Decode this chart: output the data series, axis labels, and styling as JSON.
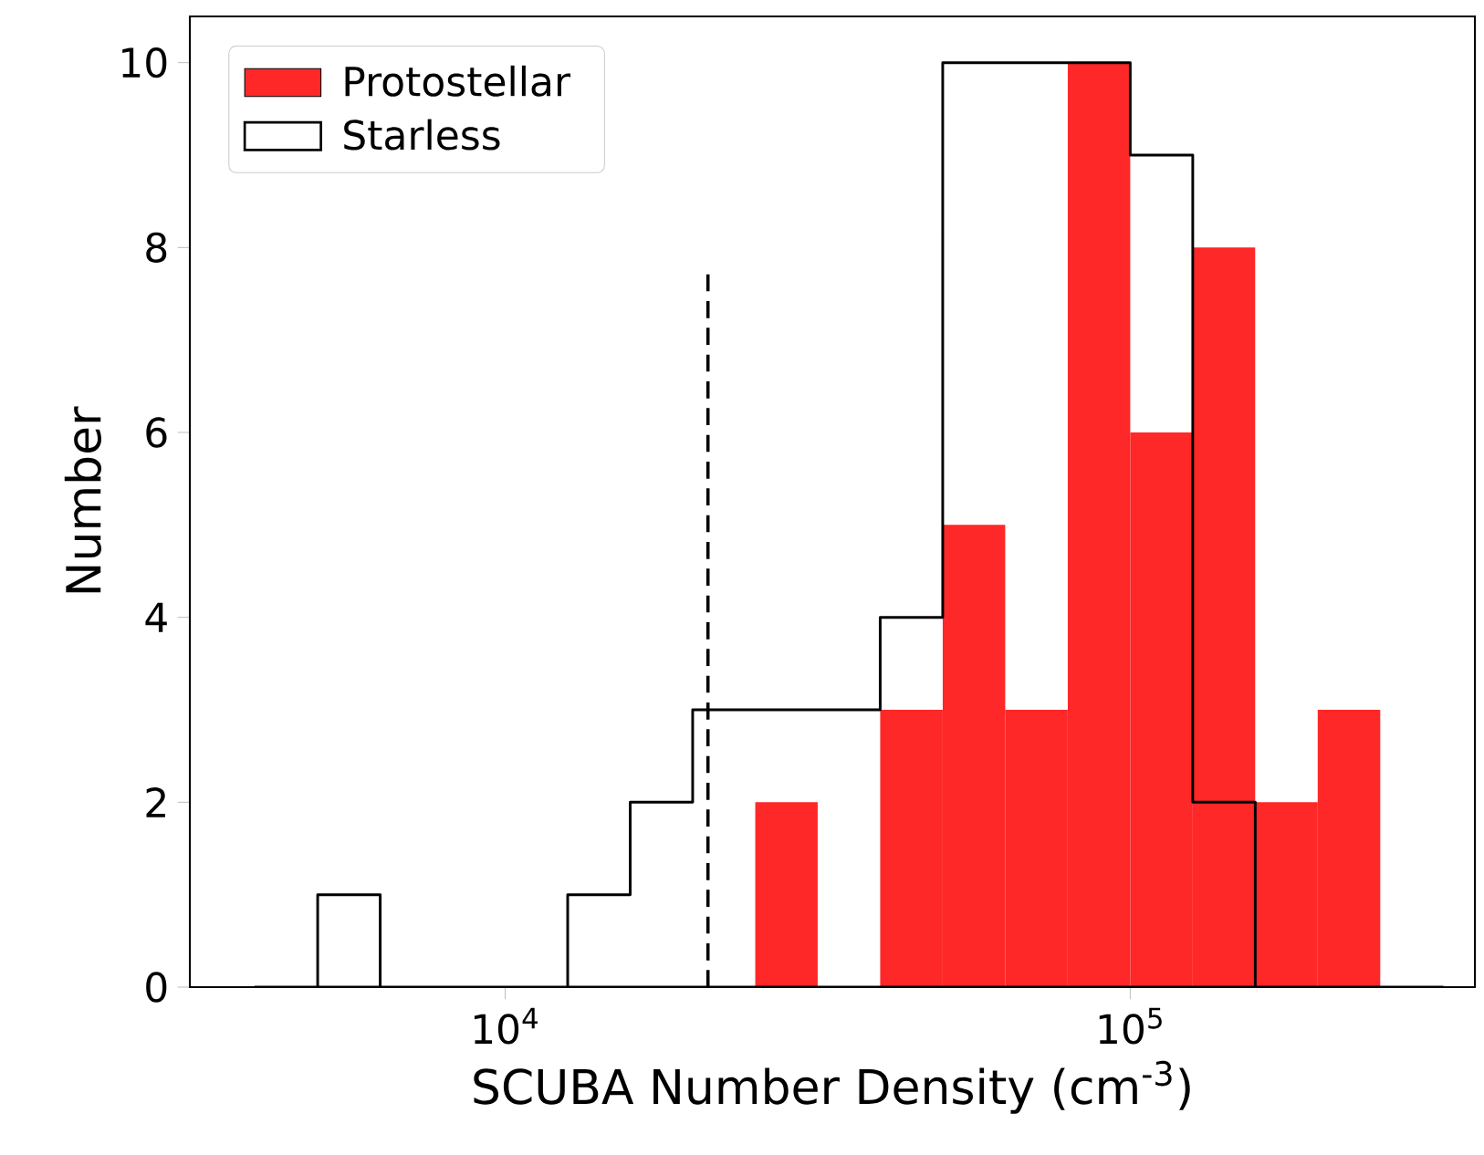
{
  "chart_data": {
    "type": "histogram",
    "xlabel": "SCUBA Number Density (cm$^{-3}$)",
    "ylabel": "Number",
    "log": "x",
    "legend": "top left",
    "xlim": [
      3130,
      356000
    ],
    "xticks": [
      {
        "value": 10000,
        "label": "10$^{4}$"
      },
      {
        "value": 100000,
        "label": "10$^{5}$"
      }
    ],
    "ylim": [
      0,
      10.5
    ],
    "yticks": [
      0,
      2,
      4,
      6,
      8,
      10
    ],
    "bins": [
      3981,
      5012,
      6310,
      7943,
      10000,
      12589,
      15849,
      19953,
      25119,
      31623,
      39811,
      50119,
      63096,
      79433,
      100000,
      125893,
      158489,
      199526,
      251189,
      316228
    ],
    "series": [
      {
        "name": "Protostellar",
        "type": "histogram",
        "color": "#ff2828",
        "values": [
          0,
          0,
          0,
          0,
          0,
          0,
          0,
          0,
          2,
          0,
          3,
          5,
          3,
          10,
          6,
          8,
          2,
          3,
          0
        ]
      },
      {
        "name": "Starless",
        "type": "histogram",
        "color": "#000000",
        "line_style": "solid",
        "values": [
          0,
          1,
          0,
          0,
          0,
          1,
          2,
          3,
          3,
          3,
          4,
          10,
          10,
          10,
          9,
          2,
          0,
          0,
          0
        ]
      },
      {
        "type": "line",
        "color": "#000000",
        "line_style": "dashed",
        "x": [
          21100,
          21100
        ],
        "values": [
          0,
          7.75
        ]
      }
    ]
  }
}
